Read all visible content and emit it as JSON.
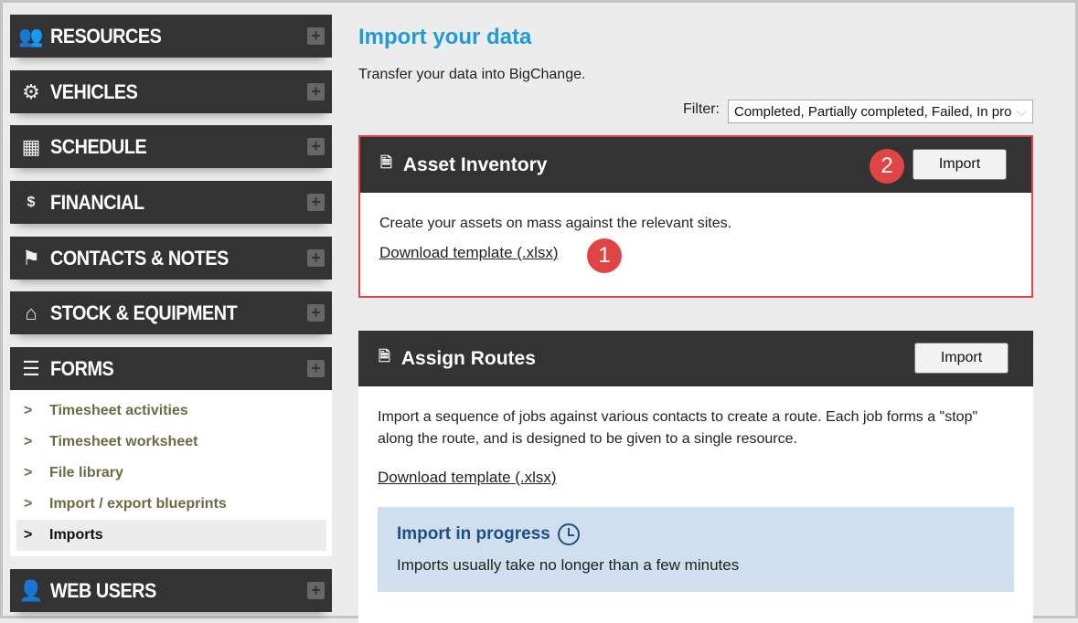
{
  "sidebar": {
    "sections": [
      {
        "label": "RESOURCES",
        "icon": "resources-icon"
      },
      {
        "label": "VEHICLES",
        "icon": "vehicles-icon"
      },
      {
        "label": "SCHEDULE",
        "icon": "schedule-icon"
      },
      {
        "label": "FINANCIAL",
        "icon": "financial-icon"
      },
      {
        "label": "CONTACTS & NOTES",
        "icon": "flag-icon"
      },
      {
        "label": "STOCK & EQUIPMENT",
        "icon": "stock-icon"
      },
      {
        "label": "FORMS",
        "icon": "forms-icon"
      },
      {
        "label": "WEB USERS",
        "icon": "web-users-icon"
      }
    ],
    "forms_items": [
      {
        "label": "Timesheet activities"
      },
      {
        "label": "Timesheet worksheet"
      },
      {
        "label": "File library"
      },
      {
        "label": "Import / export blueprints"
      },
      {
        "label": "Imports",
        "active": true
      }
    ]
  },
  "main": {
    "title": "Import your data",
    "subtitle": "Transfer your data into BigChange.",
    "filter_label": "Filter:",
    "filter_value": "Completed, Partially completed, Failed, In progress",
    "cards": [
      {
        "title": "Asset Inventory",
        "import_label": "Import",
        "description": "Create your assets on mass against the relevant sites.",
        "download": "Download template (.xlsx)"
      },
      {
        "title": "Assign Routes",
        "import_label": "Import",
        "description": "Import a sequence of jobs against various contacts to create a route. Each job forms a \"stop\" along the route, and is designed to be given to a single resource.",
        "download": "Download template (.xlsx)",
        "progress": {
          "title": "Import in progress",
          "text": "Imports usually take no longer than a few minutes"
        }
      }
    ]
  },
  "annotations": {
    "one": "1",
    "two": "2",
    "highlight_color": "#e04545"
  }
}
